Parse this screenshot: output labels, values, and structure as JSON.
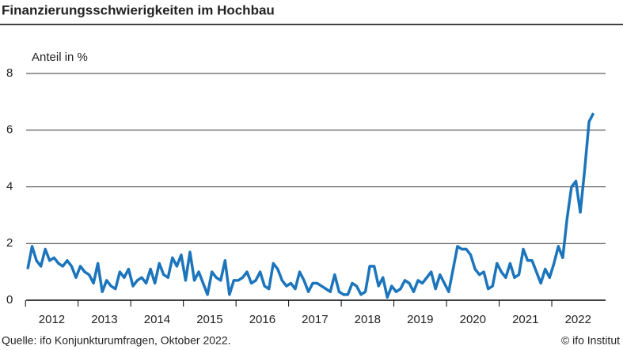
{
  "chart_data": {
    "type": "line",
    "title": "Finanzierungsschwierigkeiten im Hochbau",
    "y_label": "Anteil in %",
    "source": "Quelle: ifo Konjunkturumfragen, Oktober 2022.",
    "credit": "© ifo Institut",
    "categories": [
      null,
      null,
      null,
      null,
      null,
      "2012",
      null,
      null,
      null,
      null,
      null,
      null,
      null,
      null,
      null,
      null,
      null,
      "2013",
      null,
      null,
      null,
      null,
      null,
      null,
      null,
      null,
      null,
      null,
      null,
      "2014",
      null,
      null,
      null,
      null,
      null,
      null,
      null,
      null,
      null,
      null,
      null,
      "2015",
      null,
      null,
      null,
      null,
      null,
      null,
      null,
      null,
      null,
      null,
      null,
      "2016",
      null,
      null,
      null,
      null,
      null,
      null,
      null,
      null,
      null,
      null,
      null,
      "2017",
      null,
      null,
      null,
      null,
      null,
      null,
      null,
      null,
      null,
      null,
      null,
      "2018",
      null,
      null,
      null,
      null,
      null,
      null,
      null,
      null,
      null,
      null,
      null,
      "2019",
      null,
      null,
      null,
      null,
      null,
      null,
      null,
      null,
      null,
      null,
      null,
      "2020",
      null,
      null,
      null,
      null,
      null,
      null,
      null,
      null,
      null,
      null,
      null,
      "2021",
      null,
      null,
      null,
      null,
      null,
      null,
      null,
      null,
      null,
      null,
      null,
      "2022",
      null,
      null,
      null,
      null
    ],
    "series": [
      {
        "name": "Anteil",
        "color": "#1c75bc",
        "values": [
          1.1,
          1.9,
          1.4,
          1.2,
          1.8,
          1.4,
          1.5,
          1.3,
          1.2,
          1.4,
          1.2,
          0.8,
          1.2,
          1.0,
          0.9,
          0.6,
          1.3,
          0.3,
          0.7,
          0.5,
          0.4,
          1.0,
          0.8,
          1.1,
          0.5,
          0.7,
          0.8,
          0.6,
          1.1,
          0.6,
          1.3,
          0.9,
          0.8,
          1.5,
          1.2,
          1.6,
          0.7,
          1.7,
          0.7,
          1.0,
          0.6,
          0.2,
          1.0,
          0.8,
          0.7,
          1.4,
          0.2,
          0.7,
          0.7,
          0.8,
          1.0,
          0.6,
          0.7,
          1.0,
          0.5,
          0.4,
          1.3,
          1.1,
          0.7,
          0.5,
          0.6,
          0.4,
          1.0,
          0.7,
          0.3,
          0.6,
          0.6,
          0.5,
          0.4,
          0.3,
          0.9,
          0.3,
          0.2,
          0.2,
          0.6,
          0.5,
          0.2,
          0.3,
          1.2,
          1.2,
          0.5,
          0.8,
          0.1,
          0.5,
          0.3,
          0.4,
          0.7,
          0.6,
          0.3,
          0.7,
          0.6,
          0.8,
          1.0,
          0.4,
          0.9,
          0.6,
          0.3,
          1.1,
          1.9,
          1.8,
          1.8,
          1.6,
          1.1,
          0.9,
          1.0,
          0.4,
          0.5,
          1.3,
          1.0,
          0.8,
          1.3,
          0.8,
          0.9,
          1.8,
          1.4,
          1.4,
          1.0,
          0.6,
          1.1,
          0.8,
          1.3,
          1.9,
          1.5,
          2.9,
          4.0,
          4.2,
          3.1,
          4.6,
          6.3,
          6.6
        ]
      }
    ],
    "ylim": [
      0,
      8
    ],
    "yticks": [
      0,
      2,
      4,
      6,
      8
    ],
    "grid": true
  }
}
